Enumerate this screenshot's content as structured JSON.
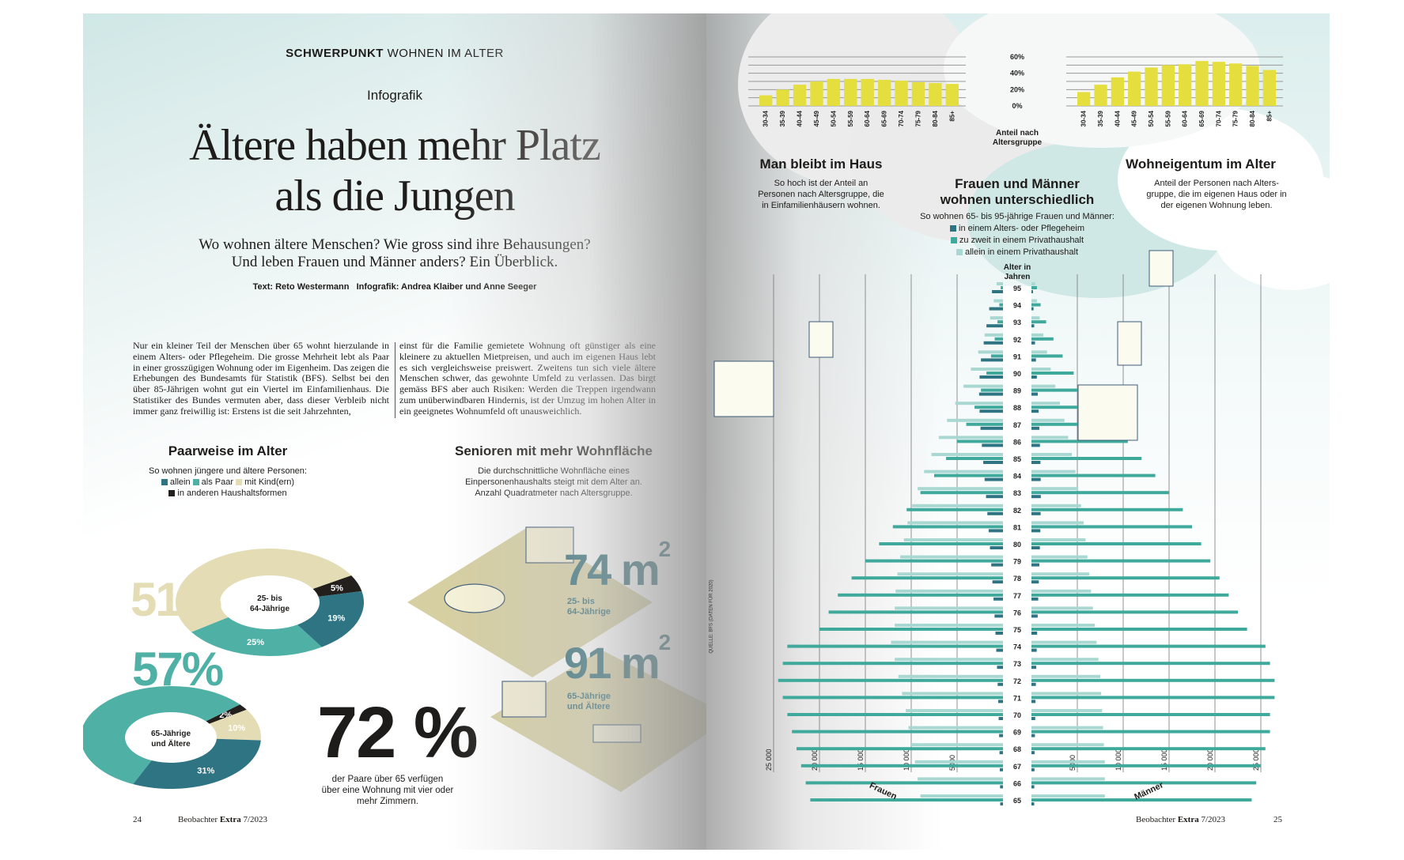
{
  "left_page": {
    "kicker_bold": "SCHWERPUNKT",
    "kicker_rest": "WOHNEN IM ALTER",
    "label": "Infografik",
    "title_line1": "Ältere haben mehr Platz",
    "title_line2": "als die Jungen",
    "subtitle_line1": "Wo wohnen ältere Menschen? Wie gross sind ihre Behausungen?",
    "subtitle_line2": "Und leben Frauen und Männer anders? Ein Überblick.",
    "credits": "Text: Reto Westermann   Infografik: Andrea Klaiber und Anne Seeger",
    "article_col1": "Nur ein kleiner Teil der Menschen über 65 wohnt hierzulande in einem Alters- oder Pflegeheim. Die grosse Mehrheit lebt als Paar in einer grosszügigen Wohnung oder im Eigenheim. Das zeigen die Erhebungen des Bundesamts für Statistik (BFS). Selbst bei den über 85-Jährigen wohnt gut ein Viertel im Einfamilienhaus. Die Statistiker des Bundes vermuten aber, dass dieser Verbleib nicht immer ganz freiwillig ist: Erstens ist die seit Jahrzehnten,",
    "article_col2": "einst für die Familie gemietete Wohnung oft günstiger als eine kleinere zu aktuellen Mietpreisen, und auch im eigenen Haus lebt es sich vergleichsweise preiswert. Zweitens tun sich viele ältere Menschen schwer, das gewohnte Umfeld zu verlassen. Das birgt gemäss BFS aber auch Risiken: Werden die Treppen irgendwann zum unüberwindbaren Hindernis, ist der Umzug im hohen Alter in ein geeignetes Wohnumfeld oft unausweichlich.",
    "paarweise": {
      "heading": "Paarweise im Alter",
      "intro": "So wohnen jüngere und ältere Personen:",
      "legend": [
        "allein",
        "als Paar",
        "mit Kind(ern)",
        "in anderen Haushaltsformen"
      ],
      "big_young": "51%",
      "big_old": "57%"
    },
    "senioren": {
      "heading": "Senioren mit mehr Wohnfläche",
      "intro_line1": "Die durchschnittliche Wohnfläche eines",
      "intro_line2": "Einpersonenhaushalts steigt mit dem Alter an.",
      "intro_line3": "Anzahl Quadratmeter nach Altersgruppe.",
      "young_value": "74 m",
      "young_label1": "25- bis",
      "young_label2": "64-Jährige",
      "old_value": "91 m",
      "old_label1": "65-Jährige",
      "old_label2": "und Ältere",
      "unit_sup": "2"
    },
    "stat72": {
      "value": "72 %",
      "caption_line1": "der Paare über 65 verfügen",
      "caption_line2": "über eine Wohnung mit vier oder",
      "caption_line3": "mehr Zimmern."
    },
    "footer": {
      "page": "24",
      "mag": "Beobachter",
      "mag_bold": "Extra",
      "issue": "7/2023"
    }
  },
  "right_page": {
    "source": "QUELLE: BFS (DATEN FÜR 2020)",
    "center_axis_label_line1": "Anteil nach",
    "center_axis_label_line2": "Altersgruppe",
    "haus": {
      "heading": "Man bleibt im Haus",
      "desc_line1": "So hoch ist der Anteil an",
      "desc_line2": "Personen nach Altersgruppe, die",
      "desc_line3": "in Einfamilienhäusern wohnen."
    },
    "eigentum": {
      "heading": "Wohneigentum im Alter",
      "desc_line1": "Anteil der Personen nach Alters-",
      "desc_line2": "gruppe, die im eigenen Haus oder in",
      "desc_line3": "der eigenen Wohnung leben."
    },
    "pyramid_text": {
      "heading_line1": "Frauen und Männer",
      "heading_line2": "wohnen unterschiedlich",
      "intro": "So wohnen 65- bis 95-jährige Frauen und Männer:",
      "legend": [
        "in einem Alters- oder Pflegeheim",
        "zu zweit in einem Privathaushalt",
        "allein in einem Privathaushalt"
      ],
      "axis_title_line1": "Alter in",
      "axis_title_line2": "Jahren",
      "left_label": "Frauen",
      "right_label": "Männer"
    },
    "footer": {
      "page": "25",
      "mag": "Beobachter",
      "mag_bold": "Extra",
      "issue": "7/2023"
    }
  },
  "colors": {
    "allein": "#2e7482",
    "paar": "#4fb0a6",
    "kind": "#e3dcb4",
    "andere": "#231f1c",
    "heim": "#2e7482",
    "zu_zweit": "#3fa99c",
    "allein_privat": "#a9d8d3",
    "bars": "#e4df3e",
    "floor": "#d6cfa2",
    "headline_teal": "#2b6873"
  },
  "chart_data": [
    {
      "type": "bar",
      "title": "Man bleibt im Haus",
      "categories": [
        "30-34",
        "35-39",
        "40-44",
        "45-49",
        "50-54",
        "55-59",
        "60-64",
        "65-69",
        "70-74",
        "75-79",
        "80-84",
        "85+"
      ],
      "values": [
        13,
        20,
        26,
        30,
        33,
        33,
        33,
        32,
        31,
        29,
        28,
        27
      ],
      "yticks": [
        "0%",
        "20%",
        "40%",
        "60%"
      ],
      "ylim": [
        0,
        60
      ],
      "ylabel": "Anteil nach Altersgruppe",
      "grid": true
    },
    {
      "type": "bar",
      "title": "Wohneigentum im Alter",
      "categories": [
        "30-34",
        "35-39",
        "40-44",
        "45-49",
        "50-54",
        "55-59",
        "60-64",
        "65-69",
        "70-74",
        "75-79",
        "80-84",
        "85+"
      ],
      "values": [
        17,
        26,
        35,
        42,
        47,
        50,
        51,
        55,
        54,
        52,
        49,
        44
      ],
      "yticks": [
        "0%",
        "20%",
        "40%",
        "60%"
      ],
      "ylim": [
        0,
        60
      ],
      "grid": true
    },
    {
      "type": "pie",
      "title": "Paarweise im Alter",
      "center_label_line1": "25- bis",
      "center_label_line2": "64-Jährige",
      "slices": [
        {
          "name": "in anderen Haushaltsformen",
          "value": 5,
          "label": "5%"
        },
        {
          "name": "allein",
          "value": 19,
          "label": "19%"
        },
        {
          "name": "als Paar",
          "value": 25,
          "label": "25%"
        },
        {
          "name": "mit Kind(ern)",
          "value": 51,
          "label": "51%"
        }
      ]
    },
    {
      "type": "pie",
      "center_label_line1": "65-Jährige",
      "center_label_line2": "und Ältere",
      "slices": [
        {
          "name": "in anderen Haushaltsformen",
          "value": 2,
          "label": "2%"
        },
        {
          "name": "mit Kind(ern)",
          "value": 10,
          "label": "10%"
        },
        {
          "name": "allein",
          "value": 31,
          "label": "31%"
        },
        {
          "name": "als Paar",
          "value": 57,
          "label": "57%"
        }
      ]
    },
    {
      "type": "bar",
      "title": "Frauen und Männer wohnen unterschiedlich",
      "orientation": "population-pyramid",
      "ages": [
        65,
        66,
        67,
        68,
        69,
        70,
        71,
        72,
        73,
        74,
        75,
        76,
        77,
        78,
        79,
        80,
        81,
        82,
        83,
        84,
        85,
        86,
        87,
        88,
        89,
        90,
        91,
        92,
        93,
        94,
        95
      ],
      "xticks": [
        "25 000",
        "20 000",
        "15 000",
        "10 000",
        "5000"
      ],
      "xtick_values": [
        25000,
        20000,
        15000,
        10000,
        5000
      ],
      "frauen": {
        "heim": [
          300,
          320,
          350,
          380,
          420,
          470,
          520,
          580,
          650,
          730,
          820,
          920,
          1030,
          1150,
          1280,
          1420,
          1560,
          1700,
          1850,
          2000,
          2150,
          2300,
          2450,
          2550,
          2600,
          2550,
          2400,
          2100,
          1800,
          1500,
          1200
        ],
        "zu_zweit": [
          21000,
          21500,
          22000,
          22500,
          23000,
          23500,
          24000,
          24500,
          24000,
          23500,
          20000,
          19000,
          18000,
          16500,
          15000,
          13500,
          12000,
          10500,
          9000,
          7500,
          6200,
          5000,
          4000,
          3100,
          2400,
          1800,
          1300,
          900,
          600,
          400,
          250
        ],
        "allein": [
          9000,
          9300,
          9600,
          10000,
          10300,
          10600,
          11000,
          11400,
          11800,
          12200,
          11800,
          11800,
          11700,
          11500,
          11200,
          10800,
          10400,
          9900,
          9300,
          8600,
          7800,
          7000,
          6100,
          5200,
          4300,
          3500,
          2700,
          2000,
          1400,
          1000,
          700
        ]
      },
      "maenner": {
        "heim": [
          300,
          310,
          330,
          350,
          380,
          410,
          440,
          480,
          520,
          570,
          620,
          680,
          740,
          800,
          860,
          920,
          970,
          1000,
          1020,
          1010,
          980,
          930,
          860,
          780,
          690,
          590,
          490,
          390,
          300,
          230,
          170
        ],
        "zu_zweit": [
          24000,
          24500,
          25000,
          25500,
          26000,
          26000,
          26500,
          26500,
          26000,
          25500,
          23500,
          22500,
          21500,
          20500,
          19500,
          18500,
          17500,
          16500,
          15000,
          13500,
          12000,
          10500,
          9000,
          7500,
          6000,
          4600,
          3400,
          2400,
          1600,
          1000,
          600
        ],
        "allein": [
          8000,
          8000,
          8000,
          7900,
          7800,
          7700,
          7600,
          7500,
          7300,
          7100,
          6900,
          6700,
          6500,
          6300,
          6100,
          5900,
          5700,
          5400,
          5100,
          4800,
          4400,
          4000,
          3600,
          3100,
          2600,
          2100,
          1700,
          1300,
          900,
          600,
          400
        ]
      }
    }
  ]
}
